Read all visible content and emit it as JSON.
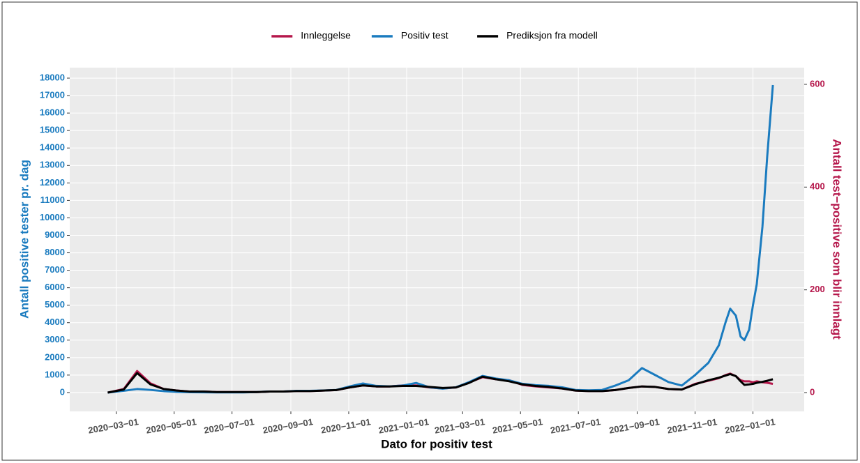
{
  "chart_data": {
    "type": "line",
    "xlabel": "Dato for positiv test",
    "ylabel": "Antall positive tester pr. dag",
    "y2label": "Antall test−positive som blir innlagt",
    "x": [
      "2020-02-21",
      "2020-03-09",
      "2020-03-23",
      "2020-04-06",
      "2020-04-20",
      "2020-05-04",
      "2020-05-18",
      "2020-06-01",
      "2020-06-15",
      "2020-06-29",
      "2020-07-13",
      "2020-07-27",
      "2020-08-10",
      "2020-08-24",
      "2020-09-07",
      "2020-09-21",
      "2020-10-05",
      "2020-10-19",
      "2020-11-02",
      "2020-11-16",
      "2020-11-30",
      "2020-12-14",
      "2020-12-28",
      "2021-01-11",
      "2021-01-25",
      "2021-02-08",
      "2021-02-22",
      "2021-03-08",
      "2021-03-22",
      "2021-04-05",
      "2021-04-19",
      "2021-05-03",
      "2021-05-17",
      "2021-05-31",
      "2021-06-14",
      "2021-06-28",
      "2021-07-12",
      "2021-07-26",
      "2021-08-09",
      "2021-08-23",
      "2021-09-06",
      "2021-09-20",
      "2021-10-04",
      "2021-10-18",
      "2021-11-01",
      "2021-11-15",
      "2021-11-26",
      "2021-12-03",
      "2021-12-08",
      "2021-12-14",
      "2021-12-19",
      "2021-12-23",
      "2021-12-28",
      "2022-01-01",
      "2022-01-05",
      "2022-01-11",
      "2022-01-16",
      "2022-01-22"
    ],
    "series": [
      {
        "name": "Innleggelse",
        "color": "#b5174b",
        "axis": "y2",
        "values": [
          0,
          7,
          42,
          18,
          7,
          4,
          2,
          2,
          1,
          1,
          1,
          1,
          2,
          2,
          3,
          3,
          4,
          5,
          10,
          14,
          12,
          12,
          14,
          14,
          10,
          8,
          10,
          20,
          30,
          26,
          24,
          15,
          12,
          10,
          8,
          4,
          3,
          3,
          5,
          9,
          12,
          11,
          7,
          6,
          17,
          23,
          28,
          34,
          37,
          32,
          24,
          22,
          22,
          20,
          22,
          20,
          19,
          17
        ]
      },
      {
        "name": "Positiv test",
        "color": "#1a7bbf",
        "axis": "y",
        "values": [
          0,
          100,
          200,
          150,
          80,
          40,
          20,
          15,
          10,
          10,
          10,
          30,
          60,
          60,
          100,
          100,
          120,
          150,
          350,
          520,
          380,
          350,
          400,
          550,
          300,
          220,
          300,
          600,
          950,
          800,
          700,
          500,
          420,
          380,
          300,
          150,
          130,
          150,
          400,
          700,
          1400,
          1000,
          600,
          400,
          1000,
          1700,
          2700,
          4000,
          4800,
          4400,
          3200,
          3000,
          3600,
          5000,
          6200,
          9500,
          13500,
          17600
        ]
      },
      {
        "name": "Prediksjon fra modell",
        "color": "#000000",
        "axis": "y2",
        "values": [
          0,
          6,
          38,
          16,
          7,
          4,
          2,
          2,
          1,
          1,
          1,
          1,
          2,
          2,
          3,
          3,
          4,
          5,
          10,
          14,
          12,
          12,
          13,
          13,
          11,
          9,
          10,
          19,
          31,
          26,
          22,
          16,
          13,
          11,
          8,
          4,
          3,
          3,
          5,
          9,
          12,
          11,
          7,
          6,
          16,
          24,
          29,
          33,
          36,
          32,
          22,
          15,
          16,
          17,
          19,
          21,
          23,
          26
        ]
      }
    ],
    "xlim": [
      "2020-01-12",
      "2022-02-24"
    ],
    "xticks": [
      {
        "value": "2020-03-01",
        "label": "2020−03−01"
      },
      {
        "value": "2020-05-01",
        "label": "2020−05−01"
      },
      {
        "value": "2020-07-01",
        "label": "2020−07−01"
      },
      {
        "value": "2020-09-01",
        "label": "2020−09−01"
      },
      {
        "value": "2020-11-01",
        "label": "2020−11−01"
      },
      {
        "value": "2021-01-01",
        "label": "2021−01−01"
      },
      {
        "value": "2021-03-01",
        "label": "2021−03−01"
      },
      {
        "value": "2021-05-01",
        "label": "2021−05−01"
      },
      {
        "value": "2021-07-01",
        "label": "2021−07−01"
      },
      {
        "value": "2021-09-01",
        "label": "2021−09−01"
      },
      {
        "value": "2021-11-01",
        "label": "2021−11−01"
      },
      {
        "value": "2022-01-01",
        "label": "2022−01−01"
      }
    ],
    "ylim": [
      -1080,
      18600
    ],
    "yticks": [
      0,
      1000,
      2000,
      3000,
      4000,
      5000,
      6000,
      7000,
      8000,
      9000,
      10000,
      11000,
      12000,
      13000,
      14000,
      15000,
      16000,
      17000,
      18000
    ],
    "y2lim": [
      -36.6,
      632.5
    ],
    "y2ticks": [
      0,
      200,
      400,
      600
    ],
    "grid": true,
    "legend": "top"
  }
}
